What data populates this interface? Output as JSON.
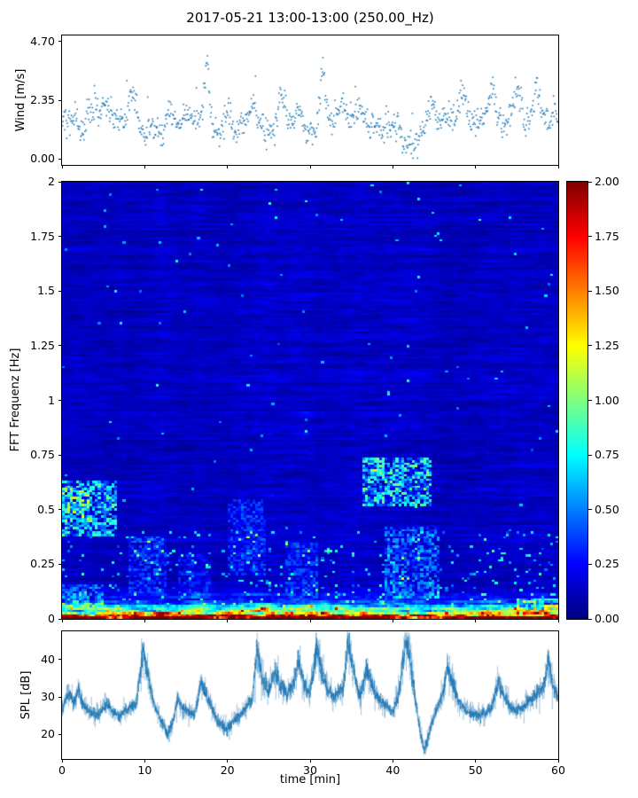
{
  "title": "2017-05-21 13:00-13:00 (250.00_Hz)",
  "chart_data": [
    {
      "type": "scatter",
      "name": "wind-speed",
      "ylabel": "Wind [m/s]",
      "xlim": [
        0,
        60
      ],
      "ylim": [
        -0.23,
        4.93
      ],
      "yticks": [
        0,
        2.35,
        4.7
      ],
      "ytick_labels": [
        "0.00",
        "2.35",
        "4.70"
      ],
      "xticks": [
        0,
        10,
        20,
        30,
        40,
        50,
        60
      ],
      "marker_color": "#1f77b4",
      "n_points": 950,
      "base_level": 1.45,
      "noise_sd": 0.27,
      "walk": {
        "persistence": 0.93,
        "step": 0.32
      },
      "outlier_prob": 0.012,
      "peaks": [
        [
          4,
          0.5,
          0.8
        ],
        [
          8.5,
          1.0,
          0.5
        ],
        [
          13,
          0.9,
          0.5
        ],
        [
          17.5,
          2.2,
          0.35
        ],
        [
          20,
          0.6,
          0.5
        ],
        [
          23,
          1.1,
          0.6
        ],
        [
          26.5,
          1.3,
          0.5
        ],
        [
          28.5,
          1.0,
          0.4
        ],
        [
          31.5,
          2.1,
          0.4
        ],
        [
          34,
          1.0,
          0.5
        ],
        [
          36,
          0.7,
          0.4
        ],
        [
          44.5,
          0.6,
          0.4
        ],
        [
          48.5,
          1.2,
          0.8
        ],
        [
          52,
          0.9,
          0.6
        ],
        [
          55,
          1.2,
          0.6
        ],
        [
          57.5,
          0.9,
          0.5
        ],
        [
          59.5,
          0.9,
          0.3
        ],
        [
          42,
          -0.85,
          1.6
        ],
        [
          11,
          -0.3,
          1.0
        ],
        [
          38,
          -0.35,
          1.5
        ]
      ],
      "seed": 42
    },
    {
      "type": "heatmap",
      "name": "fft-spectrogram",
      "ylabel": "FFT Frequenz [Hz]",
      "xlim": [
        0,
        60
      ],
      "ylim": [
        0,
        2
      ],
      "yticks": [
        0,
        0.25,
        0.5,
        0.75,
        1,
        1.25,
        1.5,
        1.75,
        2
      ],
      "ytick_labels": [
        "0",
        "0.25",
        "0.5",
        "0.75",
        "1",
        "1.25",
        "1.5",
        "1.75",
        "2"
      ],
      "xticks": [
        0,
        10,
        20,
        30,
        40,
        50,
        60
      ],
      "colormap": "jet",
      "vmin": 0,
      "vmax": 2,
      "colorbar_ticks": [
        0,
        0.25,
        0.5,
        0.75,
        1,
        1.25,
        1.5,
        1.75,
        2
      ],
      "colorbar_tick_labels": [
        "0.00",
        "0.25",
        "0.50",
        "0.75",
        "1.00",
        "1.25",
        "1.50",
        "1.75",
        "2.00"
      ],
      "grid": {
        "cols": 180,
        "rows": 190
      },
      "background_level": 0.13,
      "low_freq_boost": {
        "amplitude": 1.7,
        "scale": 0.05,
        "power": 1.3
      },
      "features": [
        {
          "t": [
            0,
            6.5
          ],
          "f": [
            0.38,
            0.63
          ],
          "boost": 0.5
        },
        {
          "t": [
            0,
            3.5
          ],
          "f": [
            0.44,
            0.6
          ],
          "boost": 0.3
        },
        {
          "t": [
            0,
            5
          ],
          "f": [
            0.05,
            0.16
          ],
          "boost": 0.3
        },
        {
          "t": [
            36.5,
            44.5
          ],
          "f": [
            0.52,
            0.74
          ],
          "boost": 0.55
        },
        {
          "t": [
            39,
            45.5
          ],
          "f": [
            0.1,
            0.42
          ],
          "boost": 0.3
        },
        {
          "t": [
            20,
            24.5
          ],
          "f": [
            0.2,
            0.55
          ],
          "boost": 0.18
        },
        {
          "t": [
            55,
            60
          ],
          "f": [
            0.02,
            0.1
          ],
          "boost": 0.35
        },
        {
          "t": [
            8,
            12.5
          ],
          "f": [
            0.12,
            0.38
          ],
          "boost": 0.2
        },
        {
          "t": [
            27,
            31
          ],
          "f": [
            0.1,
            0.35
          ],
          "boost": 0.18
        },
        {
          "t": [
            14,
            18
          ],
          "f": [
            0.1,
            0.3
          ],
          "boost": 0.15
        }
      ],
      "seed": 7
    },
    {
      "type": "line",
      "name": "spl",
      "ylabel": "SPL [dB]",
      "xlabel": "time [min]",
      "xlim": [
        0,
        60
      ],
      "ylim": [
        13.5,
        47.5
      ],
      "yticks": [
        20,
        30,
        40
      ],
      "ytick_labels": [
        "20",
        "30",
        "40"
      ],
      "xticks": [
        0,
        10,
        20,
        30,
        40,
        50,
        60
      ],
      "xtick_labels": [
        "0",
        "10",
        "20",
        "30",
        "40",
        "50",
        "60"
      ],
      "line_color": "#1f77b4",
      "n_points": 2800,
      "noise_sd": 1.0,
      "seed": 99,
      "control_points": [
        [
          0,
          27
        ],
        [
          0.7,
          31
        ],
        [
          1.5,
          29
        ],
        [
          2,
          32
        ],
        [
          2.5,
          28
        ],
        [
          3,
          27
        ],
        [
          4,
          25.5
        ],
        [
          5,
          27
        ],
        [
          5.5,
          29
        ],
        [
          6,
          26
        ],
        [
          7,
          25
        ],
        [
          8,
          26.5
        ],
        [
          9,
          29
        ],
        [
          9.8,
          42
        ],
        [
          10.3,
          37
        ],
        [
          11,
          29
        ],
        [
          12,
          24
        ],
        [
          12.8,
          19.5
        ],
        [
          13.5,
          24
        ],
        [
          14,
          30
        ],
        [
          14.5,
          27
        ],
        [
          15,
          26
        ],
        [
          16,
          25.5
        ],
        [
          16.8,
          34
        ],
        [
          17.5,
          30
        ],
        [
          18,
          27.5
        ],
        [
          19,
          23
        ],
        [
          20,
          21.5
        ],
        [
          21,
          24.5
        ],
        [
          22,
          26
        ],
        [
          23,
          29
        ],
        [
          23.6,
          43
        ],
        [
          24.2,
          35
        ],
        [
          25,
          31.5
        ],
        [
          25.8,
          37
        ],
        [
          26.5,
          33
        ],
        [
          27.3,
          31
        ],
        [
          28,
          34
        ],
        [
          28.6,
          39.5
        ],
        [
          29.3,
          33
        ],
        [
          30,
          31
        ],
        [
          30.8,
          43.5
        ],
        [
          31.4,
          37
        ],
        [
          32,
          33
        ],
        [
          33,
          30
        ],
        [
          34,
          32
        ],
        [
          34.6,
          44.5
        ],
        [
          35.2,
          37
        ],
        [
          36,
          30
        ],
        [
          36.8,
          37.5
        ],
        [
          37.5,
          33
        ],
        [
          38.2,
          30
        ],
        [
          39,
          28
        ],
        [
          40,
          26
        ],
        [
          40.8,
          32
        ],
        [
          41.6,
          45.5
        ],
        [
          42.3,
          37
        ],
        [
          43,
          25
        ],
        [
          43.8,
          16
        ],
        [
          44.5,
          21
        ],
        [
          45.2,
          26
        ],
        [
          46,
          30
        ],
        [
          46.6,
          37.5
        ],
        [
          47.3,
          33
        ],
        [
          48,
          28.5
        ],
        [
          49,
          26
        ],
        [
          50,
          25
        ],
        [
          51,
          26
        ],
        [
          52,
          28
        ],
        [
          52.8,
          34
        ],
        [
          53.5,
          30
        ],
        [
          54.5,
          26.5
        ],
        [
          55.5,
          27
        ],
        [
          56.5,
          29
        ],
        [
          57.5,
          31
        ],
        [
          58.3,
          33
        ],
        [
          58.8,
          39.5
        ],
        [
          59.4,
          33
        ],
        [
          60,
          30
        ]
      ]
    }
  ]
}
